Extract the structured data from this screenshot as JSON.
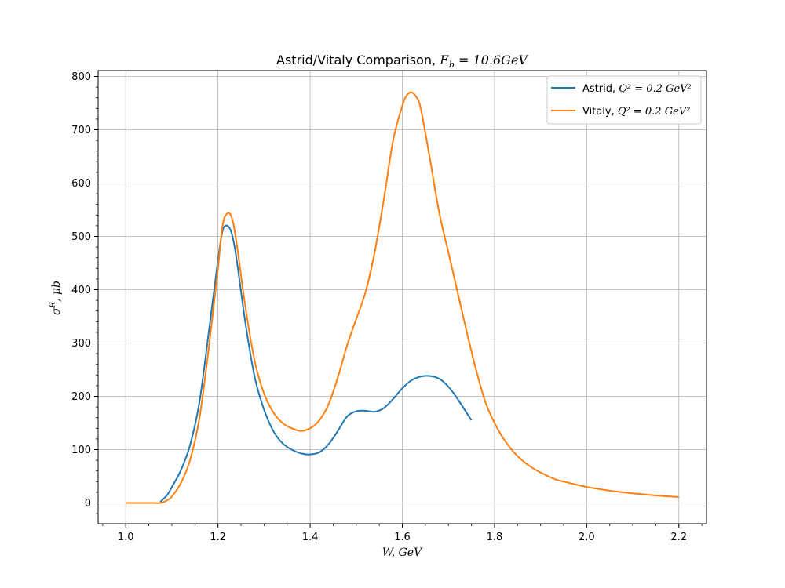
{
  "chart_data": {
    "type": "line",
    "title": "Astrid/Vitaly Comparison, ",
    "title_math": "E",
    "title_math_sub": "b",
    "title_math_rest": " = 10.6GeV",
    "xlabel": "W, GeV",
    "ylabel": "σ",
    "ylabel_sup": "R",
    "ylabel_rest": ", μb",
    "xlim": [
      0.94,
      2.26
    ],
    "ylim": [
      -39,
      811
    ],
    "xticks": [
      1.0,
      1.2,
      1.4,
      1.6,
      1.8,
      2.0,
      2.2
    ],
    "xtick_labels": [
      "1.0",
      "1.2",
      "1.4",
      "1.6",
      "1.8",
      "2.0",
      "2.2"
    ],
    "yticks": [
      0,
      100,
      200,
      300,
      400,
      500,
      600,
      700,
      800
    ],
    "ytick_labels": [
      "0",
      "100",
      "200",
      "300",
      "400",
      "500",
      "600",
      "700",
      "800"
    ],
    "grid": true,
    "legend_position": "top-right",
    "series": [
      {
        "name": "Astrid, ",
        "legend_math": "Q² = 0.2 GeV²",
        "color": "#1f77b4",
        "x": [
          1.075,
          1.09,
          1.1,
          1.12,
          1.14,
          1.16,
          1.18,
          1.2,
          1.21,
          1.22,
          1.23,
          1.24,
          1.26,
          1.28,
          1.3,
          1.32,
          1.34,
          1.36,
          1.38,
          1.4,
          1.42,
          1.44,
          1.46,
          1.48,
          1.5,
          1.52,
          1.54,
          1.56,
          1.58,
          1.6,
          1.62,
          1.64,
          1.66,
          1.68,
          1.7,
          1.72,
          1.75
        ],
        "y": [
          2,
          15,
          30,
          62,
          110,
          190,
          320,
          455,
          510,
          520,
          505,
          460,
          335,
          235,
          175,
          135,
          112,
          100,
          93,
          91,
          95,
          110,
          135,
          162,
          172,
          173,
          171,
          178,
          195,
          215,
          230,
          237,
          238,
          233,
          218,
          195,
          155
        ]
      },
      {
        "name": "Vitaly, ",
        "legend_math": "Q² = 0.2 GeV²",
        "color": "#ff7f0e",
        "x": [
          1.0,
          1.02,
          1.04,
          1.06,
          1.075,
          1.09,
          1.1,
          1.12,
          1.14,
          1.16,
          1.18,
          1.2,
          1.21,
          1.22,
          1.23,
          1.24,
          1.26,
          1.28,
          1.3,
          1.32,
          1.34,
          1.36,
          1.38,
          1.4,
          1.42,
          1.44,
          1.46,
          1.48,
          1.5,
          1.52,
          1.54,
          1.56,
          1.58,
          1.6,
          1.61,
          1.62,
          1.63,
          1.64,
          1.66,
          1.68,
          1.7,
          1.72,
          1.74,
          1.76,
          1.78,
          1.8,
          1.82,
          1.84,
          1.86,
          1.88,
          1.9,
          1.93,
          1.96,
          2.0,
          2.05,
          2.1,
          2.15,
          2.2
        ],
        "y": [
          0,
          0,
          0,
          0,
          0,
          5,
          12,
          38,
          82,
          160,
          290,
          440,
          520,
          543,
          535,
          490,
          365,
          265,
          205,
          170,
          150,
          140,
          135,
          140,
          155,
          185,
          235,
          295,
          345,
          395,
          470,
          570,
          680,
          745,
          765,
          770,
          762,
          740,
          645,
          545,
          470,
          395,
          320,
          250,
          190,
          150,
          120,
          97,
          80,
          67,
          57,
          45,
          38,
          30,
          23,
          18,
          14,
          11
        ]
      }
    ]
  }
}
